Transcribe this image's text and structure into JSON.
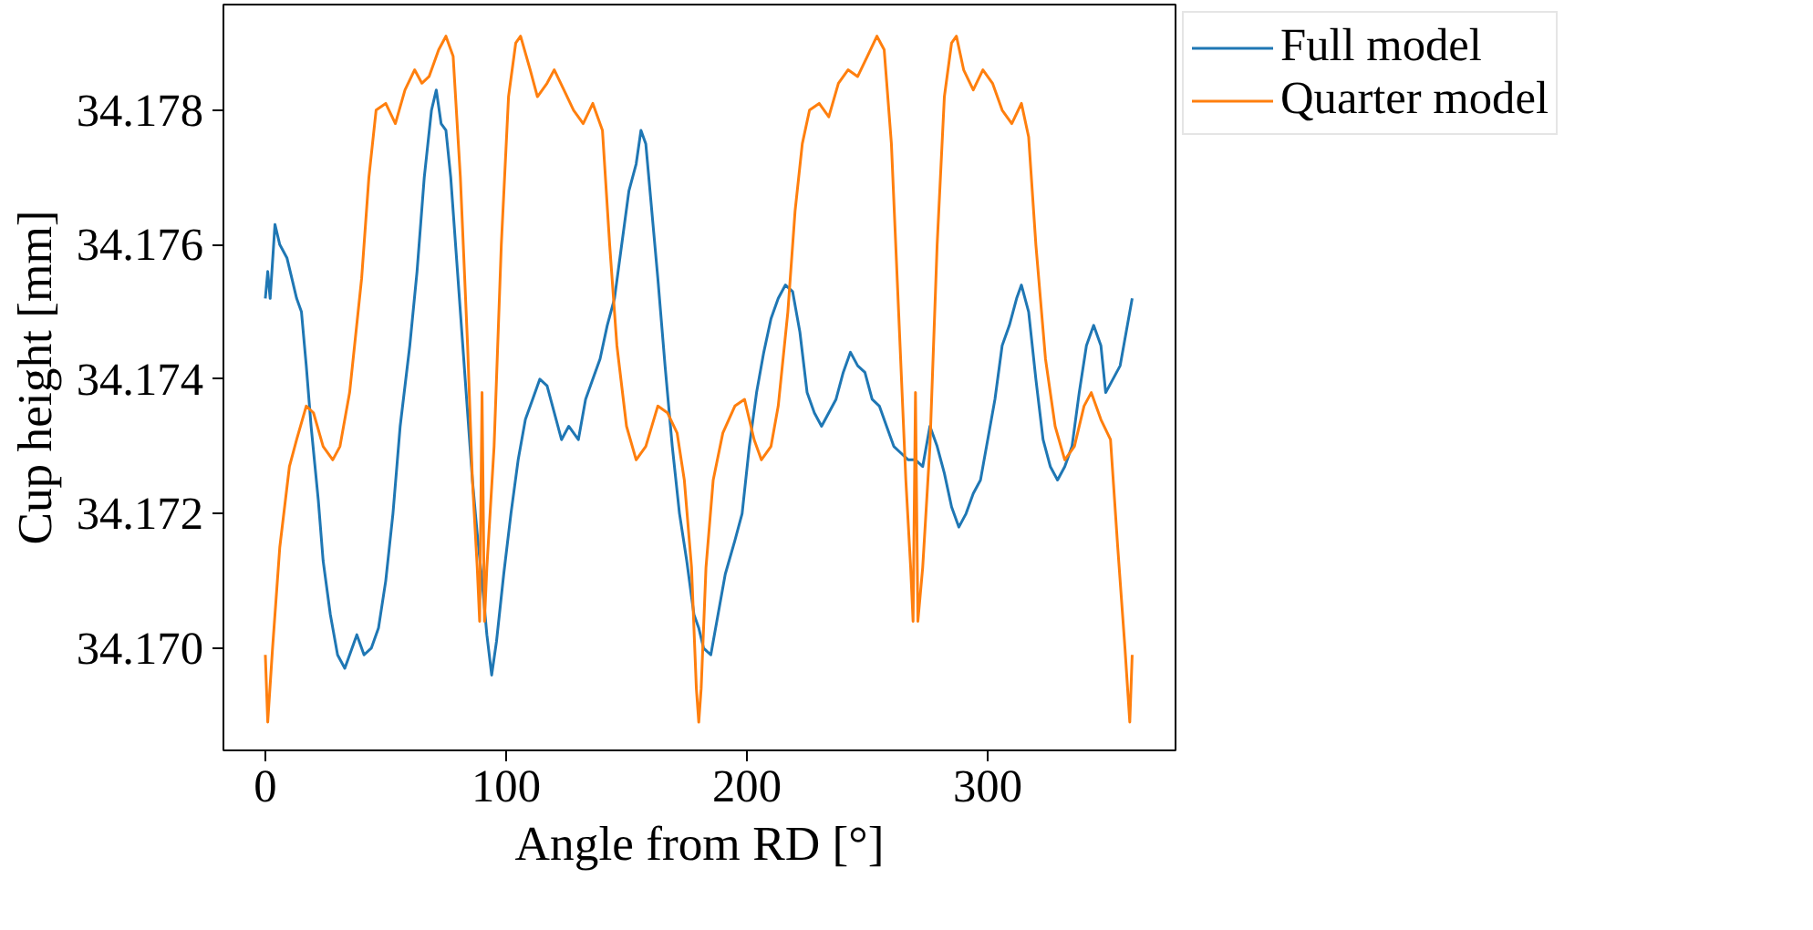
{
  "chart_data": {
    "type": "line",
    "xlabel": "Angle from RD [°]",
    "ylabel": "Cup height [mm]",
    "xlim": [
      -17.4,
      378
    ],
    "ylim": [
      34.16848,
      34.17957
    ],
    "xticks": [
      0,
      100,
      200,
      300
    ],
    "yticks": [
      {
        "value": 34.17,
        "label": "34.170"
      },
      {
        "value": 34.172,
        "label": "34.172"
      },
      {
        "value": 34.174,
        "label": "34.174"
      },
      {
        "value": 34.176,
        "label": "34.176"
      },
      {
        "value": 34.178,
        "label": "34.178"
      }
    ],
    "grid": false,
    "legend": "top right",
    "line_style": "solid",
    "series": [
      {
        "name": "Full model",
        "color": "#1f77b4",
        "x": [
          0,
          1,
          2,
          4,
          6,
          9,
          11,
          13,
          15,
          17,
          19,
          22,
          24,
          27,
          30,
          33,
          36,
          38,
          41,
          44,
          47,
          50,
          53,
          56,
          60,
          63,
          66,
          69,
          71,
          73,
          75,
          77,
          80,
          83,
          86,
          88,
          90,
          92,
          94,
          96,
          99,
          102,
          105,
          108,
          111,
          114,
          117,
          120,
          123,
          126,
          130,
          133,
          136,
          139,
          142,
          145,
          148,
          151,
          154,
          156,
          158,
          160,
          163,
          166,
          169,
          172,
          175,
          178,
          180,
          182,
          185,
          188,
          191,
          195,
          198,
          201,
          204,
          207,
          210,
          213,
          216,
          219,
          222,
          225,
          228,
          231,
          234,
          237,
          240,
          243,
          246,
          249,
          252,
          255,
          258,
          261,
          264,
          267,
          270,
          273,
          276,
          279,
          282,
          285,
          288,
          291,
          294,
          297,
          300,
          303,
          306,
          309,
          312,
          314,
          317,
          320,
          323,
          326,
          329,
          332,
          335,
          338,
          341,
          344,
          347,
          349,
          352,
          355,
          358,
          360
        ],
        "values": [
          34.1752,
          34.1756,
          34.1752,
          34.1763,
          34.176,
          34.1758,
          34.1755,
          34.1752,
          34.175,
          34.1742,
          34.1733,
          34.1722,
          34.1713,
          34.1705,
          34.1699,
          34.1697,
          34.17,
          34.1702,
          34.1699,
          34.17,
          34.1703,
          34.171,
          34.172,
          34.1733,
          34.1745,
          34.1756,
          34.177,
          34.178,
          34.1783,
          34.1778,
          34.1777,
          34.177,
          34.1755,
          34.174,
          34.1725,
          34.1717,
          34.171,
          34.1702,
          34.1696,
          34.1701,
          34.1711,
          34.172,
          34.1728,
          34.1734,
          34.1737,
          34.174,
          34.1739,
          34.1735,
          34.1731,
          34.1733,
          34.1731,
          34.1737,
          34.174,
          34.1743,
          34.1748,
          34.1752,
          34.176,
          34.1768,
          34.1772,
          34.1777,
          34.1775,
          34.1767,
          34.1755,
          34.1742,
          34.173,
          34.172,
          34.1713,
          34.1705,
          34.1703,
          34.17,
          34.1699,
          34.1705,
          34.1711,
          34.1716,
          34.172,
          34.173,
          34.1738,
          34.1744,
          34.1749,
          34.1752,
          34.1754,
          34.1753,
          34.1747,
          34.1738,
          34.1735,
          34.1733,
          34.1735,
          34.1737,
          34.1741,
          34.1744,
          34.1742,
          34.1741,
          34.1737,
          34.1736,
          34.1733,
          34.173,
          34.1729,
          34.1728,
          34.1728,
          34.1727,
          34.1733,
          34.173,
          34.1726,
          34.1721,
          34.1718,
          34.172,
          34.1723,
          34.1725,
          34.1731,
          34.1737,
          34.1745,
          34.1748,
          34.1752,
          34.1754,
          34.175,
          34.174,
          34.1731,
          34.1727,
          34.1725,
          34.1727,
          34.173,
          34.1738,
          34.1745,
          34.1748,
          34.1745,
          34.1738,
          34.174,
          34.1742,
          34.1748,
          34.1752
        ]
      },
      {
        "name": "Quarter model",
        "color": "#ff7f0e",
        "x": [
          0,
          1,
          3,
          6,
          10,
          13,
          17,
          20,
          24,
          28,
          31,
          35,
          40,
          43,
          46,
          50,
          54,
          58,
          62,
          65,
          68,
          72,
          75,
          78,
          81,
          84,
          86,
          88,
          89,
          90,
          91,
          92,
          95,
          98,
          101,
          104,
          106,
          110,
          113,
          117,
          120,
          124,
          128,
          132,
          136,
          140,
          143,
          146,
          150,
          154,
          158,
          163,
          167,
          171,
          174,
          177,
          179,
          180,
          181,
          183,
          186,
          190,
          195,
          199,
          203,
          206,
          210,
          213,
          217,
          220,
          223,
          226,
          230,
          234,
          238,
          242,
          246,
          250,
          254,
          257,
          260,
          263,
          266,
          268,
          269,
          270,
          271,
          273,
          276,
          279,
          282,
          285,
          287,
          290,
          294,
          298,
          302,
          306,
          310,
          314,
          317,
          320,
          324,
          328,
          332,
          336,
          340,
          343,
          347,
          351,
          354,
          357,
          359,
          360
        ],
        "values": [
          34.1699,
          34.1689,
          34.17,
          34.1715,
          34.1727,
          34.1731,
          34.1736,
          34.1735,
          34.173,
          34.1728,
          34.173,
          34.1738,
          34.1755,
          34.177,
          34.178,
          34.1781,
          34.1778,
          34.1783,
          34.1786,
          34.1784,
          34.1785,
          34.1789,
          34.1791,
          34.1788,
          34.177,
          34.1745,
          34.1725,
          34.1712,
          34.1704,
          34.1738,
          34.1704,
          34.1712,
          34.173,
          34.176,
          34.1782,
          34.179,
          34.1791,
          34.1786,
          34.1782,
          34.1784,
          34.1786,
          34.1783,
          34.178,
          34.1778,
          34.1781,
          34.1777,
          34.176,
          34.1745,
          34.1733,
          34.1728,
          34.173,
          34.1736,
          34.1735,
          34.1732,
          34.1725,
          34.1712,
          34.1694,
          34.1689,
          34.1694,
          34.1712,
          34.1725,
          34.1732,
          34.1736,
          34.1737,
          34.1731,
          34.1728,
          34.173,
          34.1736,
          34.175,
          34.1765,
          34.1775,
          34.178,
          34.1781,
          34.1779,
          34.1784,
          34.1786,
          34.1785,
          34.1788,
          34.1791,
          34.1789,
          34.1775,
          34.175,
          34.1725,
          34.1712,
          34.1704,
          34.1738,
          34.1704,
          34.1712,
          34.173,
          34.176,
          34.1782,
          34.179,
          34.1791,
          34.1786,
          34.1783,
          34.1786,
          34.1784,
          34.178,
          34.1778,
          34.1781,
          34.1776,
          34.176,
          34.1743,
          34.1733,
          34.1728,
          34.173,
          34.1736,
          34.1738,
          34.1734,
          34.1731,
          34.1715,
          34.17,
          34.1689,
          34.1699
        ]
      }
    ]
  }
}
